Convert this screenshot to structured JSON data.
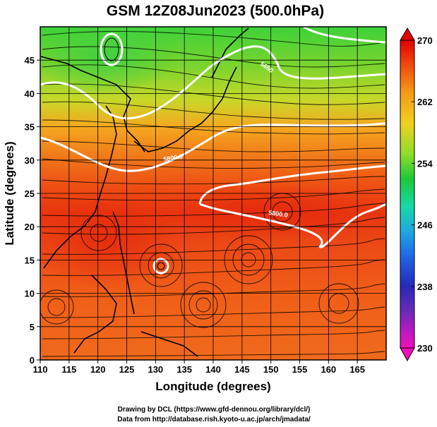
{
  "title": "GSM 12Z08Jun2023 (500.0hPa)",
  "xlabel": "Longitude (degrees)",
  "ylabel": "Latitude  (degrees)",
  "credits": [
    "Drawing by DCL (https://www.gfd-dennou.org/library/dcl/)",
    "Data from http://database.rish.kyoto-u.ac.jp/arch/jmadata/"
  ],
  "x_ticks": [
    "110",
    "115",
    "120",
    "125",
    "130",
    "135",
    "140",
    "145",
    "150",
    "155",
    "160",
    "165"
  ],
  "y_ticks": [
    "0",
    "5",
    "10",
    "15",
    "20",
    "25",
    "30",
    "35",
    "40",
    "45"
  ],
  "colorbar": {
    "labels": [
      "270",
      "262",
      "254",
      "246",
      "238",
      "230"
    ],
    "colors": [
      "#e30000",
      "#f04a10",
      "#f49a18",
      "#f0d020",
      "#8edc2c",
      "#1ec838",
      "#18d8a8",
      "#20a8e0",
      "#2068e8",
      "#2828b8",
      "#6a2ab8",
      "#c018c0",
      "#ee10b8"
    ]
  },
  "contour_labels": [
    "5800.0",
    "5800.0",
    "5650"
  ],
  "chart_data": {
    "type": "heatmap",
    "title": "GSM 12Z08Jun2023 (500.0hPa)",
    "xlabel": "Longitude (degrees)",
    "ylabel": "Latitude  (degrees)",
    "xlim": [
      110,
      170
    ],
    "ylim": [
      0,
      50
    ],
    "x_ticks": [
      110,
      115,
      120,
      125,
      130,
      135,
      140,
      145,
      150,
      155,
      160,
      165
    ],
    "y_ticks": [
      0,
      5,
      10,
      15,
      20,
      25,
      30,
      35,
      40,
      45
    ],
    "colorbar_range": [
      230,
      270
    ],
    "colorbar_ticks": [
      230,
      238,
      246,
      254,
      262,
      270
    ],
    "grid": true,
    "contour_labels": [
      "5800.0",
      "5800.0",
      "5650"
    ]
  }
}
